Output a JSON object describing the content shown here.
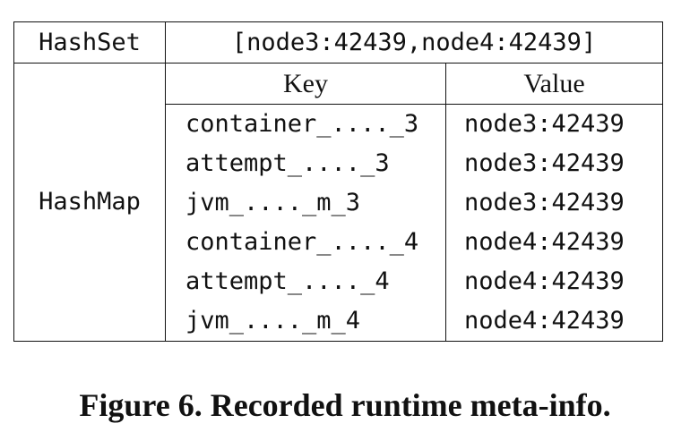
{
  "table": {
    "hashset": {
      "label": "HashSet",
      "value": "[node3:42439,node4:42439]"
    },
    "hashmap": {
      "label": "HashMap",
      "columns": {
        "key": "Key",
        "value": "Value"
      },
      "rows": [
        {
          "key": "container_...._3",
          "value": "node3:42439"
        },
        {
          "key": "attempt_...._3",
          "value": "node3:42439"
        },
        {
          "key": "jvm_...._m_3",
          "value": "node3:42439"
        },
        {
          "key": "container_...._4",
          "value": "node4:42439"
        },
        {
          "key": "attempt_...._4",
          "value": "node4:42439"
        },
        {
          "key": "jvm_...._m_4",
          "value": "node4:42439"
        }
      ]
    }
  },
  "caption": "Figure 6. Recorded runtime meta-info."
}
